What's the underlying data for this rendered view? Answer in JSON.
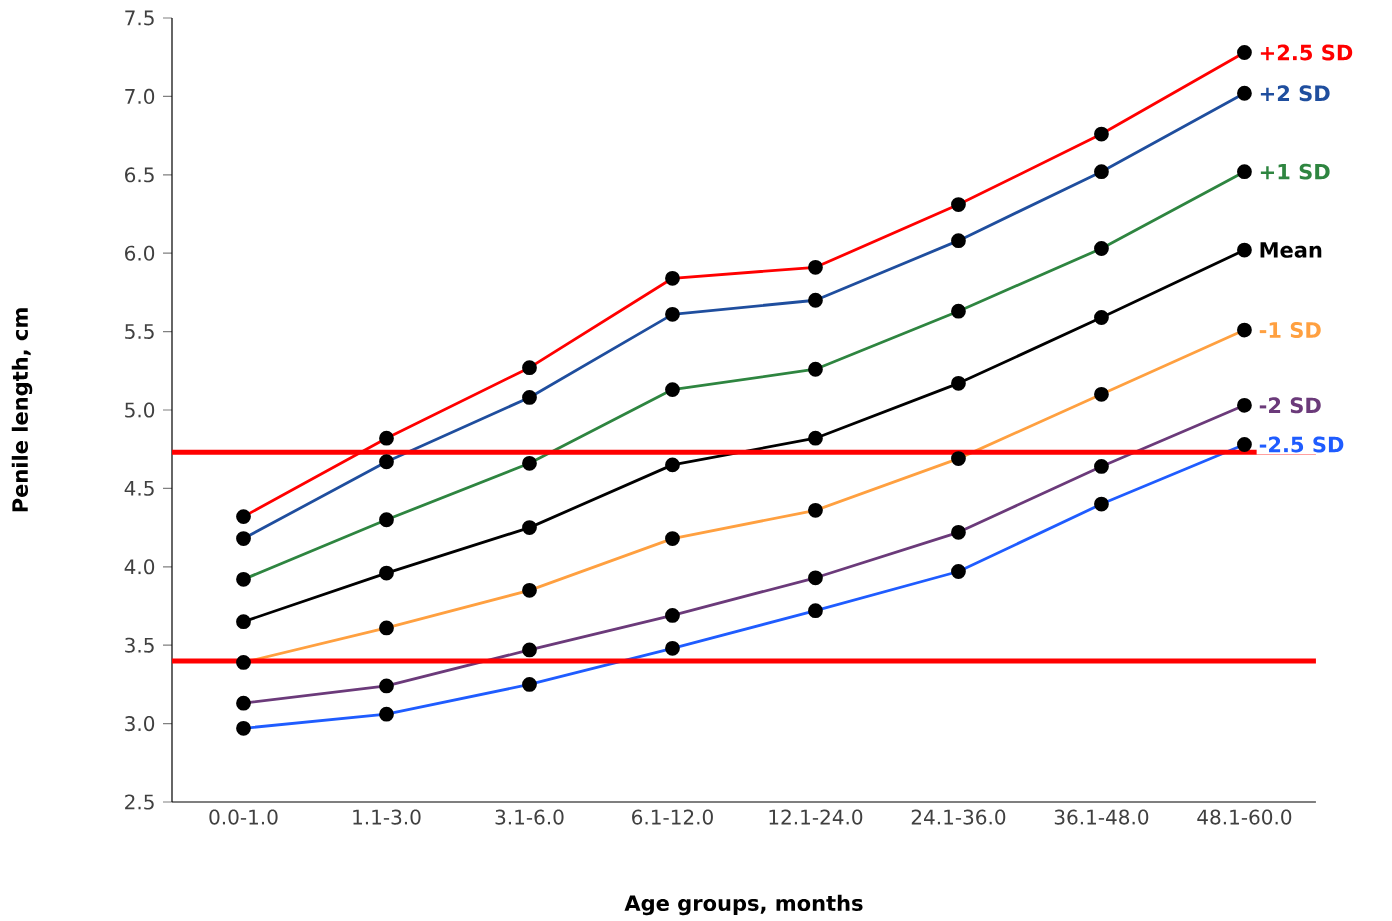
{
  "chart_data": {
    "type": "line",
    "xlabel": "Age groups, months",
    "ylabel": "Penile length, cm",
    "categories": [
      "0.0-1.0",
      "1.1-3.0",
      "3.1-6.0",
      "6.1-12.0",
      "12.1-24.0",
      "24.1-36.0",
      "36.1-48.0",
      "48.1-60.0"
    ],
    "ylim": [
      2.5,
      7.5
    ],
    "yticks": [
      {
        "value": 2.5,
        "label": "2.5"
      },
      {
        "value": 3,
        "label": "3.0"
      },
      {
        "value": 3.5,
        "label": "3.5"
      },
      {
        "value": 4,
        "label": "4.0"
      },
      {
        "value": 4.5,
        "label": "4.5"
      },
      {
        "value": 5,
        "label": "5.0"
      },
      {
        "value": 5.5,
        "label": "5.5"
      },
      {
        "value": 6,
        "label": "6.0"
      },
      {
        "value": 6.5,
        "label": "6.5"
      },
      {
        "value": 7,
        "label": "7.0"
      },
      {
        "value": 7.5,
        "label": "7.5"
      }
    ],
    "marker": "circle",
    "line_style": "solid",
    "series": [
      {
        "name": "+2.5 SD",
        "color": "#ff0000",
        "values": [
          4.32,
          4.82,
          5.27,
          5.84,
          5.91,
          6.31,
          6.76,
          7.28
        ]
      },
      {
        "name": "+2 SD",
        "color": "#1f4e9e",
        "values": [
          4.18,
          4.67,
          5.08,
          5.61,
          5.7,
          6.08,
          6.52,
          7.02
        ]
      },
      {
        "name": "+1 SD",
        "color": "#2e8540",
        "values": [
          3.92,
          4.3,
          4.66,
          5.13,
          5.26,
          5.63,
          6.03,
          6.52
        ]
      },
      {
        "name": "Mean",
        "color": "#000000",
        "values": [
          3.65,
          3.96,
          4.25,
          4.65,
          4.82,
          5.17,
          5.59,
          6.02
        ]
      },
      {
        "name": "-1 SD",
        "color": "#ffa040",
        "values": [
          3.39,
          3.61,
          3.85,
          4.18,
          4.36,
          4.69,
          5.1,
          5.51
        ]
      },
      {
        "name": "-2 SD",
        "color": "#6b3a7a",
        "values": [
          3.13,
          3.24,
          3.47,
          3.69,
          3.93,
          4.22,
          4.64,
          5.03
        ]
      },
      {
        "name": "-2.5 SD",
        "color": "#1f5cff",
        "values": [
          2.97,
          3.06,
          3.25,
          3.48,
          3.72,
          3.97,
          4.4,
          4.78
        ]
      }
    ],
    "ref_lines": [
      {
        "axis": "y",
        "value": 4.73,
        "color": "#ff0000"
      },
      {
        "axis": "y",
        "value": 3.4,
        "color": "#ff0000"
      }
    ]
  }
}
